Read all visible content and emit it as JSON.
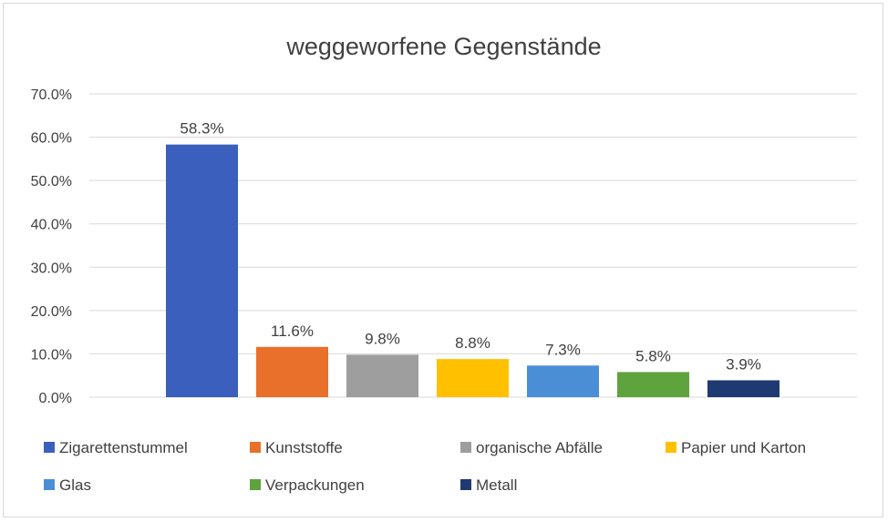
{
  "chart_data": {
    "type": "bar",
    "title": "weggeworfene Gegenstände",
    "categories": [
      "Zigarettenstummel",
      "Kunststoffe",
      "organische Abfälle",
      "Papier und Karton",
      "Glas",
      "Verpackungen",
      "Metall"
    ],
    "values": [
      58.3,
      11.6,
      9.8,
      8.8,
      7.3,
      5.8,
      3.9
    ],
    "data_labels": [
      "58.3%",
      "11.6%",
      "9.8%",
      "8.8%",
      "7.3%",
      "5.8%",
      "3.9%"
    ],
    "colors": [
      "#3a5fbd",
      "#e8702a",
      "#9e9e9e",
      "#ffc000",
      "#4a8fd6",
      "#5ea33d",
      "#1f3a72"
    ],
    "ylim": [
      0,
      70
    ],
    "y_ticks": [
      0,
      10,
      20,
      30,
      40,
      50,
      60,
      70
    ],
    "y_tick_labels": [
      "0.0%",
      "10.0%",
      "20.0%",
      "30.0%",
      "40.0%",
      "50.0%",
      "60.0%",
      "70.0%"
    ],
    "xlabel": "",
    "ylabel": "",
    "grid": true,
    "legend_position": "bottom"
  }
}
